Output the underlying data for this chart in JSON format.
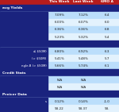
{
  "title_line1": "This Week  Last Week   6MO A",
  "header_bg": "#b71c1c",
  "col_header_bg": "#8b0000",
  "section_bg": "#1a237e",
  "section_text": "#ffffff",
  "row_light": "#bbdefb",
  "row_dark": "#e3f2fd",
  "text_dark": "#1a1a1a",
  "col_headers": [
    "This Week",
    "Last Week",
    "6MO A"
  ],
  "rows": [
    {
      "type": "section",
      "label": "avg Yields",
      "vals": [
        "",
        "",
        ""
      ]
    },
    {
      "type": "data",
      "label": "",
      "vals": [
        "7.09%",
        "7.12%",
        "6.4"
      ],
      "shade": 0
    },
    {
      "type": "data",
      "label": "",
      "vals": [
        "6.00%",
        "6.07%",
        "6.0"
      ],
      "shade": 1
    },
    {
      "type": "data",
      "label": "",
      "vals": [
        "6.36%",
        "6.36%",
        "6.8"
      ],
      "shade": 0
    },
    {
      "type": "data",
      "label": "",
      "vals": [
        "5.23%",
        "5.32%",
        "5.4"
      ],
      "shade": 1
    },
    {
      "type": "section",
      "label": "",
      "vals": [
        "",
        "",
        ""
      ]
    },
    {
      "type": "data",
      "label": "≤ $50M)",
      "vals": [
        "6.80%",
        "6.92%",
        "6.3"
      ],
      "shade": 0
    },
    {
      "type": "data",
      "label": "(> $50M)",
      "vals": [
        "5.41%",
        "5.48%",
        "5.7"
      ],
      "shade": 1
    },
    {
      "type": "data",
      "label": "ngle-B (> $50M)",
      "vals": [
        "5.66%",
        "5.74%",
        "6.1"
      ],
      "shade": 0
    },
    {
      "type": "section",
      "label": "Credit Stats",
      "vals": [
        "",
        "",
        ""
      ]
    },
    {
      "type": "data",
      "label": "",
      "vals": [
        "N/A",
        "N/A",
        ""
      ],
      "shade": 0
    },
    {
      "type": "data",
      "label": "",
      "vals": [
        "N/A",
        "N/A",
        ""
      ],
      "shade": 1
    },
    {
      "type": "section",
      "label": "Preicer Data",
      "vals": [
        "",
        "",
        ""
      ]
    },
    {
      "type": "data",
      "label": "s",
      "vals": [
        "0.12%",
        "0.14%",
        "-1.0"
      ],
      "shade": 0
    },
    {
      "type": "data",
      "label": "",
      "vals": [
        "93.22",
        "93.37",
        "93."
      ],
      "shade": 1
    }
  ]
}
